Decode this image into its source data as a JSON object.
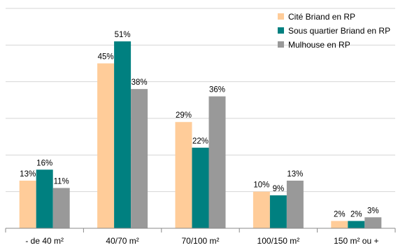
{
  "chart_data": {
    "type": "bar",
    "categories": [
      "- de 40 m²",
      "40/70 m²",
      "70/100 m²",
      "100/150 m²",
      "150 m² ou +"
    ],
    "series": [
      {
        "name": "Cité Briand en RP",
        "color": "#FFCC99",
        "values": [
          13,
          45,
          29,
          10,
          2
        ],
        "labels": [
          "13%",
          "45%",
          "29%",
          "10%",
          "2%"
        ]
      },
      {
        "name": "Sous quartier Briand en RP",
        "color": "#008080",
        "values": [
          16,
          51,
          22,
          9,
          2
        ],
        "labels": [
          "16%",
          "51%",
          "22%",
          "9%",
          "2%"
        ]
      },
      {
        "name": "Mulhouse en RP",
        "color": "#999999",
        "values": [
          11,
          38,
          36,
          13,
          3
        ],
        "labels": [
          "11%",
          "38%",
          "36%",
          "13%",
          "3%"
        ]
      }
    ],
    "ylim": [
      0,
      60
    ],
    "grid": true,
    "legend": "top-right",
    "title": "",
    "xlabel": "",
    "ylabel": ""
  }
}
